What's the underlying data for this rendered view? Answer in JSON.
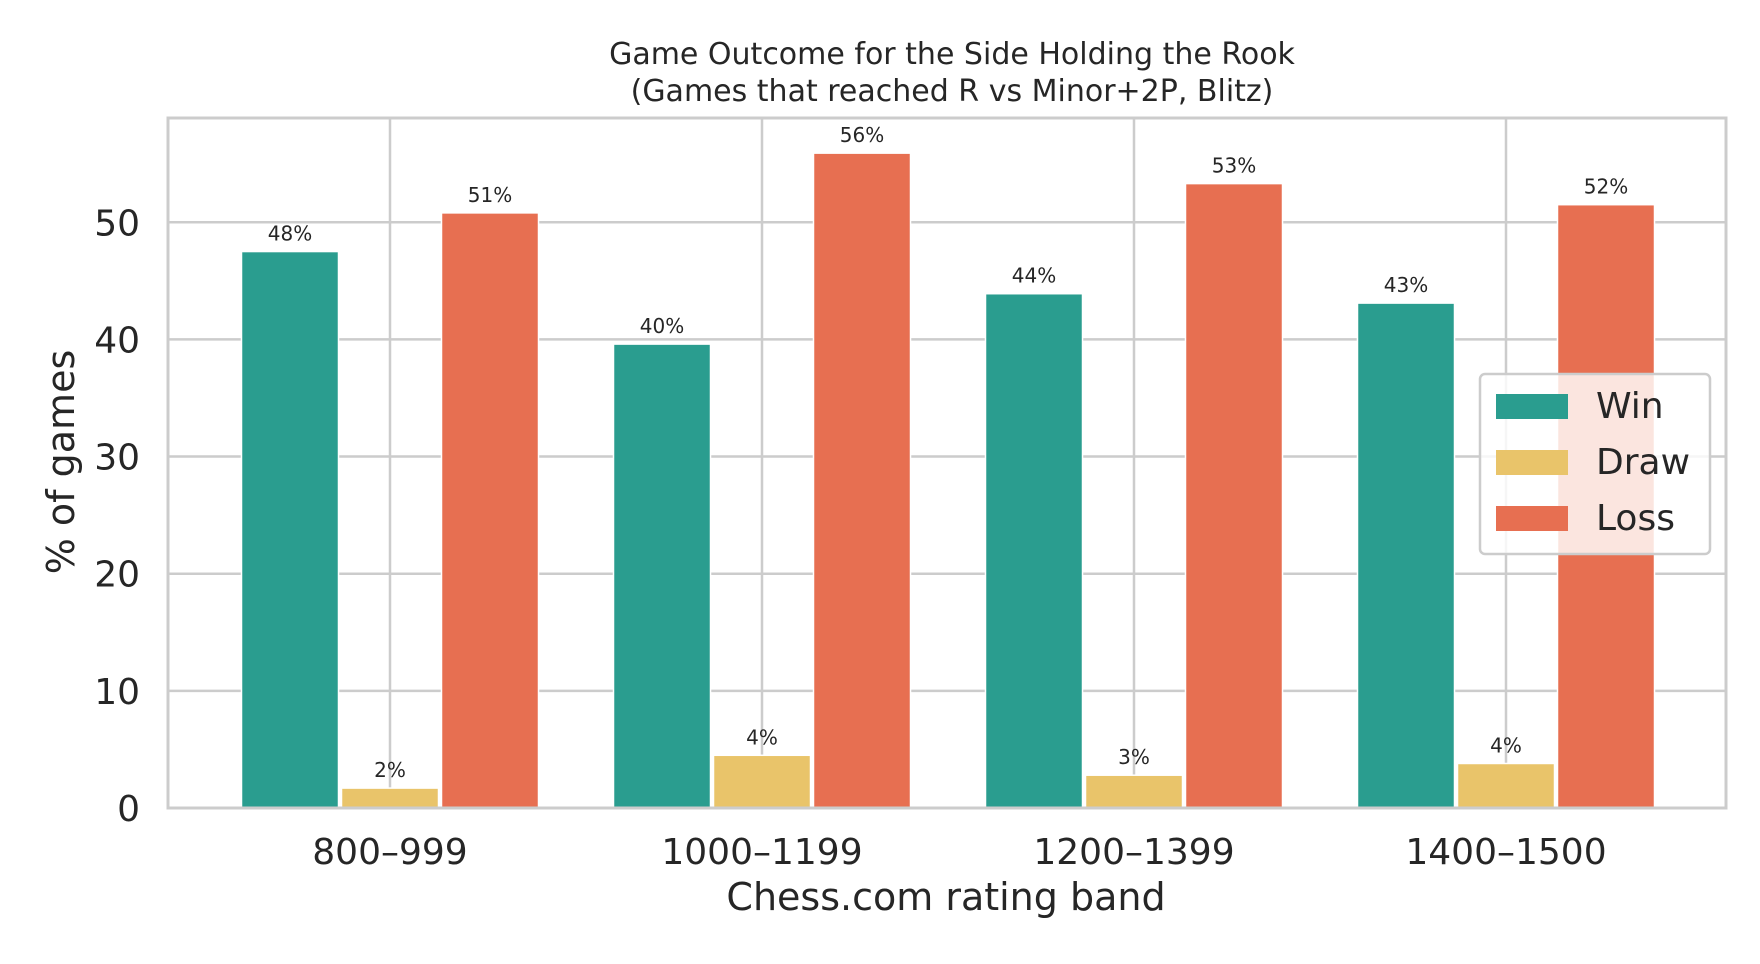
{
  "chart_data": {
    "type": "bar",
    "title_line1": "Game Outcome for the Side Holding the Rook",
    "title_line2": "(Games that reached R vs Minor+2P, Blitz)",
    "xlabel": "Chess.com rating band",
    "ylabel": "% of games",
    "categories": [
      "800–999",
      "1000–1199",
      "1200–1399",
      "1400–1500"
    ],
    "series": [
      {
        "name": "Win",
        "color": "#2a9d8f",
        "values": [
          47.5,
          39.6,
          43.9,
          43.1
        ],
        "labels": [
          "48%",
          "40%",
          "44%",
          "43%"
        ]
      },
      {
        "name": "Draw",
        "color": "#e9c46a",
        "values": [
          1.7,
          4.5,
          2.8,
          3.8
        ],
        "labels": [
          "2%",
          "4%",
          "3%",
          "4%"
        ]
      },
      {
        "name": "Loss",
        "color": "#e76f51",
        "values": [
          50.8,
          55.9,
          53.3,
          51.5
        ],
        "labels": [
          "51%",
          "56%",
          "53%",
          "52%"
        ]
      }
    ],
    "yticks": [
      0,
      10,
      20,
      30,
      40,
      50
    ],
    "ylim": [
      0,
      58.9
    ],
    "grid": true,
    "legend_position": "center-right"
  }
}
